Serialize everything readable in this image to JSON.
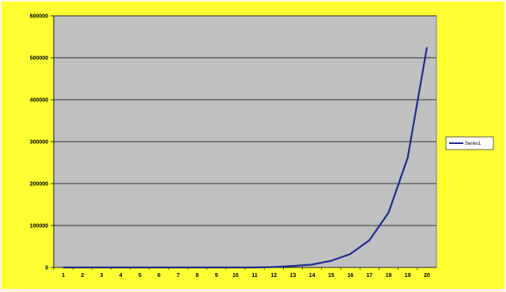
{
  "chart_data": {
    "type": "line",
    "title": "",
    "xlabel": "",
    "ylabel": "",
    "x": [
      1,
      2,
      3,
      4,
      5,
      6,
      7,
      8,
      9,
      10,
      11,
      12,
      13,
      14,
      15,
      16,
      17,
      18,
      19,
      20
    ],
    "series": [
      {
        "name": "Series1",
        "values": [
          0,
          0,
          0,
          0,
          0,
          0,
          0,
          0,
          0,
          0,
          0,
          1000,
          3500,
          7000,
          16000,
          32000,
          65000,
          131000,
          262000,
          524000
        ]
      }
    ],
    "ylim": [
      0,
      600000
    ],
    "yticks": [
      0,
      100000,
      200000,
      300000,
      400000,
      500000,
      600000
    ],
    "ytick_labels": [
      "0",
      "100000",
      "200000",
      "300000",
      "400000",
      "500000",
      "600000"
    ],
    "xtick_labels": [
      "1",
      "2",
      "3",
      "4",
      "5",
      "6",
      "7",
      "8",
      "9",
      "10",
      "11",
      "12",
      "13",
      "14",
      "15",
      "16",
      "17",
      "18",
      "19",
      "20"
    ],
    "grid": "horizontal",
    "legend_position": "right",
    "colors": {
      "background": "#ffff33",
      "plot_area": "#c0c0c0",
      "line": "#1f2a8c",
      "gridline": "#000000"
    }
  }
}
